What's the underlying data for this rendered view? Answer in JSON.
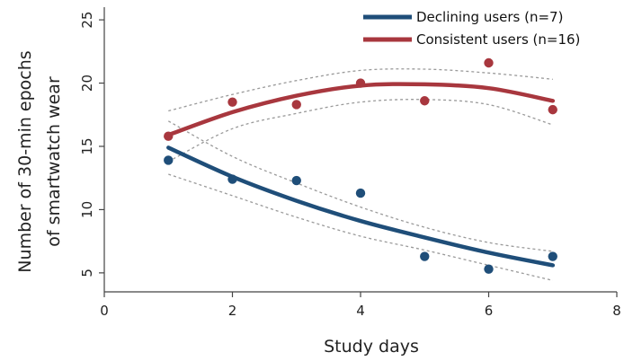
{
  "chart_data": {
    "type": "line",
    "title": "",
    "xlabel": "Study days",
    "ylabel_lines": [
      "Number of 30-min epochs",
      "of smartwatch wear"
    ],
    "xlim": [
      0,
      8
    ],
    "ylim": [
      3.5,
      26
    ],
    "xticks": [
      0,
      2,
      4,
      6,
      8
    ],
    "yticks": [
      5,
      10,
      15,
      20,
      25
    ],
    "grid": false,
    "legend_position": "top-right",
    "series": [
      {
        "name": "Declining users (n=7)",
        "color": "#1f4e79",
        "points": [
          [
            1,
            13.9
          ],
          [
            2,
            12.4
          ],
          [
            3,
            12.3
          ],
          [
            4,
            11.3
          ],
          [
            5,
            6.3
          ],
          [
            6,
            5.3
          ],
          [
            7,
            6.3
          ]
        ],
        "fit": [
          [
            1,
            14.9
          ],
          [
            2,
            12.6
          ],
          [
            3,
            10.7
          ],
          [
            4,
            9.1
          ],
          [
            5,
            7.8
          ],
          [
            6,
            6.6
          ],
          [
            7,
            5.6
          ]
        ],
        "ci_upper": [
          [
            1,
            17.0
          ],
          [
            2,
            14.2
          ],
          [
            3,
            12.1
          ],
          [
            4,
            10.2
          ],
          [
            5,
            8.6
          ],
          [
            6,
            7.4
          ],
          [
            7,
            6.7
          ]
        ],
        "ci_lower": [
          [
            1,
            12.8
          ],
          [
            2,
            11.1
          ],
          [
            3,
            9.4
          ],
          [
            4,
            7.9
          ],
          [
            5,
            6.8
          ],
          [
            6,
            5.6
          ],
          [
            7,
            4.4
          ]
        ]
      },
      {
        "name": "Consistent users (n=16)",
        "color": "#a8373e",
        "points": [
          [
            1,
            15.8
          ],
          [
            2,
            18.5
          ],
          [
            3,
            18.3
          ],
          [
            4,
            20.0
          ],
          [
            5,
            18.6
          ],
          [
            6,
            21.6
          ],
          [
            7,
            17.9
          ]
        ],
        "fit": [
          [
            1,
            15.9
          ],
          [
            2,
            17.7
          ],
          [
            3,
            19.0
          ],
          [
            4,
            19.8
          ],
          [
            5,
            19.9
          ],
          [
            6,
            19.6
          ],
          [
            7,
            18.6
          ]
        ],
        "ci_upper": [
          [
            1,
            17.8
          ],
          [
            2,
            19.1
          ],
          [
            3,
            20.2
          ],
          [
            4,
            21.0
          ],
          [
            5,
            21.1
          ],
          [
            6,
            20.8
          ],
          [
            7,
            20.3
          ]
        ],
        "ci_lower": [
          [
            1,
            13.8
          ],
          [
            2,
            16.4
          ],
          [
            3,
            17.6
          ],
          [
            4,
            18.5
          ],
          [
            5,
            18.7
          ],
          [
            6,
            18.3
          ],
          [
            7,
            16.7
          ]
        ]
      }
    ]
  }
}
